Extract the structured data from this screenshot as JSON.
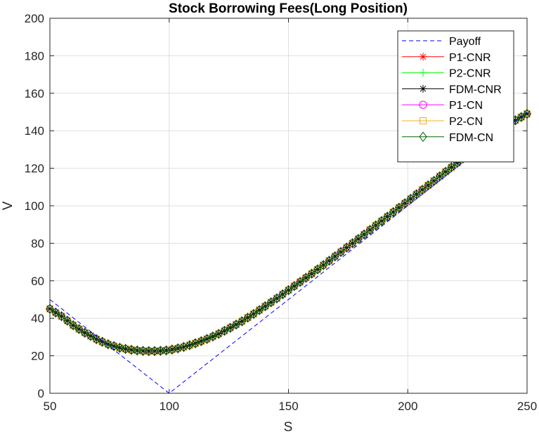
{
  "chart_data": {
    "type": "line",
    "title": "Stock Borrowing Fees(Long Position)",
    "xlabel": "S",
    "ylabel": "V",
    "xlim": [
      50,
      250
    ],
    "ylim": [
      0,
      200
    ],
    "xticks": [
      50,
      100,
      150,
      200,
      250
    ],
    "yticks": [
      0,
      20,
      40,
      60,
      80,
      100,
      120,
      140,
      160,
      180,
      200
    ],
    "grid": true,
    "legend_position": "top-right",
    "curve_points": {
      "x": [
        50,
        55,
        60,
        65,
        70,
        75,
        80,
        85,
        90,
        95,
        100,
        105,
        110,
        115,
        120,
        125,
        130,
        135,
        140,
        145,
        150,
        155,
        160,
        165,
        170,
        175,
        180,
        185,
        190,
        195,
        200,
        205,
        210,
        215,
        220,
        225,
        230,
        235,
        240,
        245,
        250
      ],
      "y": [
        45.0,
        41.0,
        36.0,
        32.0,
        28.5,
        25.8,
        24.0,
        23.0,
        22.5,
        22.5,
        23.0,
        24.3,
        26.2,
        28.5,
        31.2,
        34.5,
        38.0,
        42.0,
        46.2,
        50.5,
        55.0,
        59.5,
        64.0,
        68.7,
        73.5,
        78.3,
        83.0,
        88.0,
        92.8,
        97.7,
        102.5,
        107.5,
        112.3,
        117.3,
        122.2,
        127.0,
        132.0,
        137.0,
        141.8,
        145.5,
        149.0
      ]
    },
    "series": [
      {
        "name": "Payoff",
        "x": [
          50,
          100,
          250
        ],
        "y": [
          50,
          0,
          150
        ],
        "color": "#0000ff",
        "line": "dashed",
        "marker": "none"
      },
      {
        "name": "P1-CNR",
        "color": "#ff0000",
        "line": "solid",
        "marker": "asterisk"
      },
      {
        "name": "P2-CNR",
        "color": "#00ff00",
        "line": "solid",
        "marker": "plus"
      },
      {
        "name": "FDM-CNR",
        "color": "#000000",
        "line": "solid",
        "marker": "asterisk"
      },
      {
        "name": "P1-CN",
        "color": "#ff00ff",
        "line": "solid",
        "marker": "circle"
      },
      {
        "name": "P2-CN",
        "color": "#edb120",
        "line": "solid",
        "marker": "square"
      },
      {
        "name": "FDM-CN",
        "color": "#006400",
        "line": "solid",
        "marker": "diamond"
      }
    ]
  }
}
